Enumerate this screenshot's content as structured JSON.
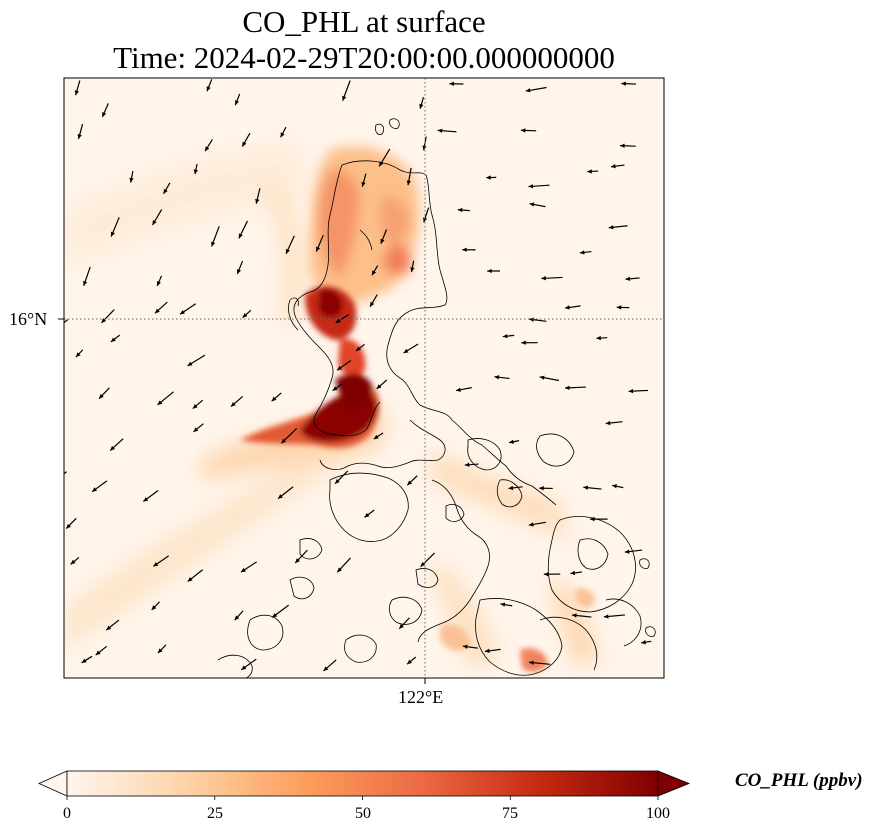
{
  "title": {
    "line1": "CO_PHL at surface",
    "line2": "Time: 2024-02-29T20:00:00.000000000"
  },
  "axes": {
    "lat_tick_label": "16°N",
    "lon_tick_label": "122°E",
    "gridline_style": "dotted"
  },
  "colorbar": {
    "label": "CO_PHL (ppbv)",
    "ticks": [
      "0",
      "25",
      "50",
      "75",
      "100"
    ],
    "min": 0,
    "max": 100,
    "extend": "both",
    "colormap": [
      "#fff5eb",
      "#fdd3a8",
      "#fd9f5b",
      "#ec6a44",
      "#c62a12",
      "#7f0000"
    ]
  },
  "field": {
    "variable": "CO_PHL",
    "units": "ppbv",
    "level": "surface",
    "overlay": "wind vectors"
  }
}
